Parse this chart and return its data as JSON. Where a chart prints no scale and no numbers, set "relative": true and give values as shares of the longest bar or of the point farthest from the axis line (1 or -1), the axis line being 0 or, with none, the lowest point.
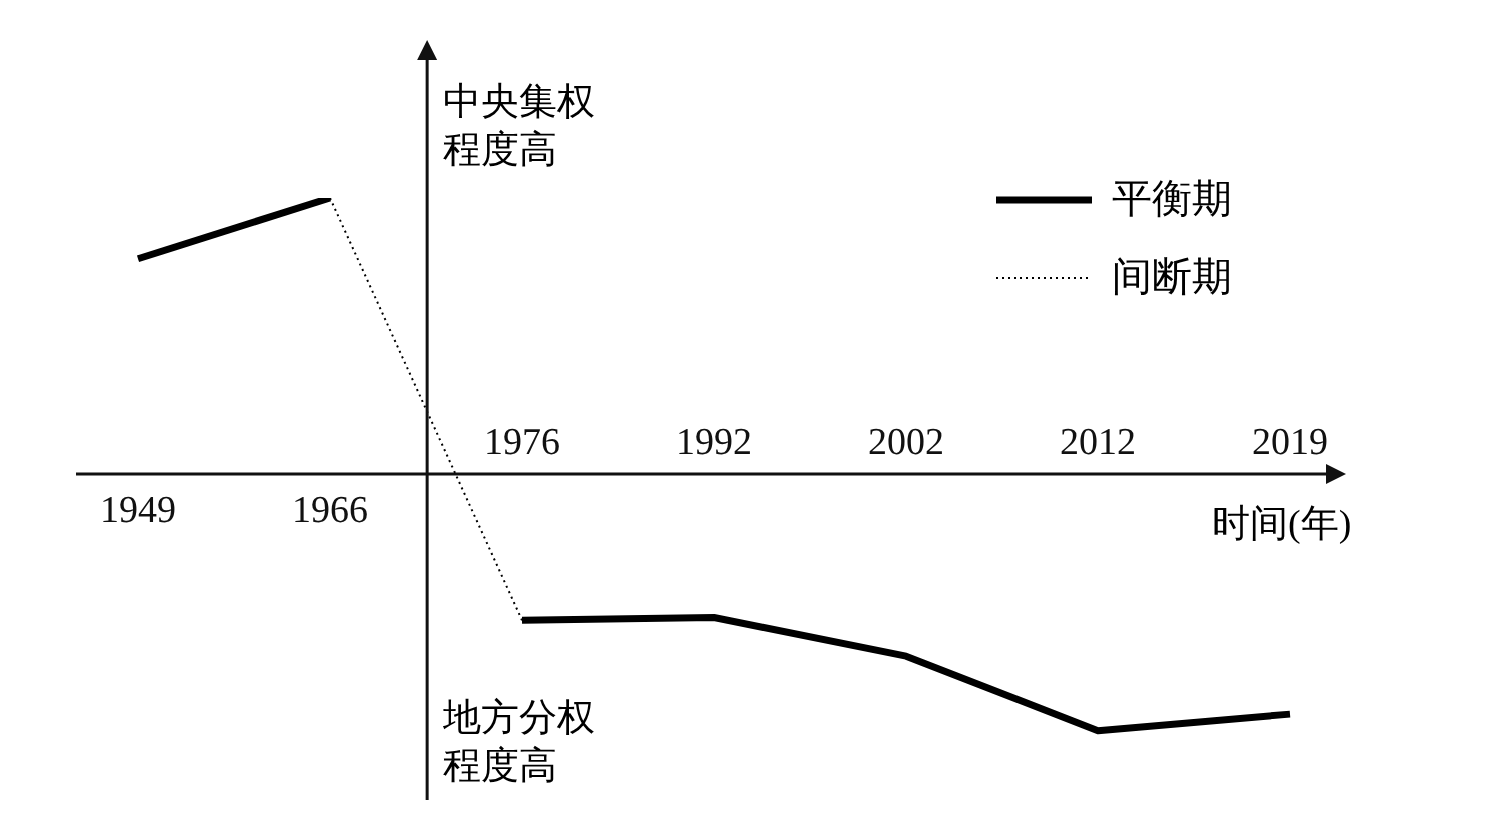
{
  "chart_data": {
    "type": "line",
    "relative": true,
    "xlabel": "时间(年)",
    "categories": [
      "1949",
      "1966",
      "1976",
      "1992",
      "2002",
      "2012",
      "2019"
    ],
    "series": [
      {
        "name": "平衡期",
        "color": "#000000",
        "line_style": "solid",
        "values": [
          0.78,
          1,
          null,
          null,
          null,
          null,
          null
        ]
      },
      {
        "name": "间断期",
        "color": "#000000",
        "line_style": "dotted",
        "values": [
          null,
          1,
          -0.53,
          null,
          null,
          null,
          null
        ]
      },
      {
        "color": "#000000",
        "line_style": "solid",
        "values": [
          null,
          null,
          -0.53,
          -0.52,
          -0.66,
          -0.93,
          -0.87
        ]
      }
    ],
    "annotations": [
      "中央集权程度高",
      "地方分权程度高"
    ],
    "legend": "top right",
    "marker": "none"
  }
}
